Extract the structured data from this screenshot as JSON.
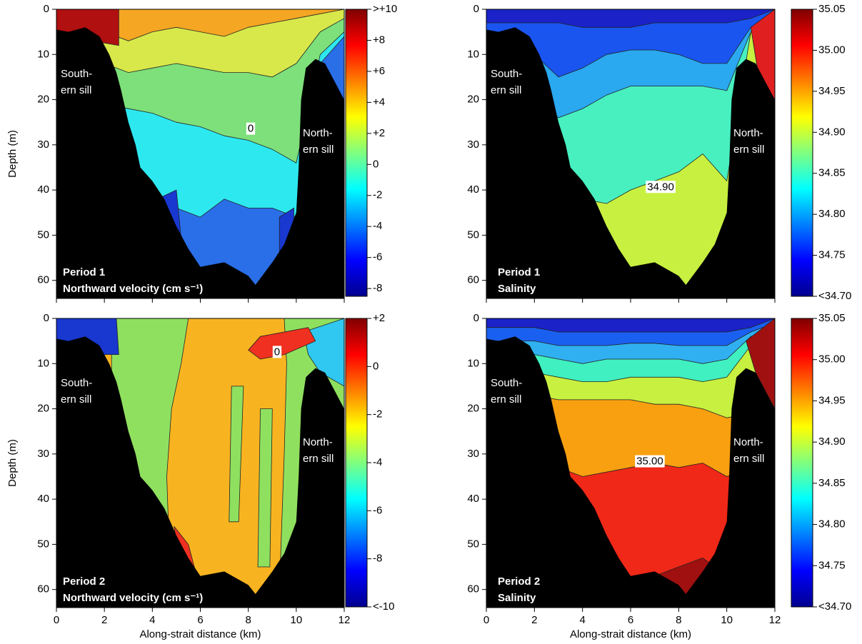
{
  "chart_data": [
    {
      "type": "contour",
      "title": "Period 1",
      "subtitle": "Northward velocity (cm s⁻¹)",
      "ylabel": "Depth (m)",
      "xlim": [
        0,
        12
      ],
      "xticks": [
        0,
        2,
        4,
        6,
        8,
        10,
        12
      ],
      "show_xtick_labels": false,
      "ylim": [
        0,
        64
      ],
      "yticks": [
        0,
        10,
        20,
        30,
        40,
        50,
        60
      ],
      "y_inverted": true,
      "annotations": [
        "South-",
        "ern sill",
        "North-",
        "ern sill"
      ],
      "colorbar": {
        "colormap": "jet",
        "lim": [
          -8.5,
          10
        ],
        "ticks": [
          {
            "value": 10,
            "label": ">+10"
          },
          {
            "value": 8,
            "label": "+8"
          },
          {
            "value": 6,
            "label": "+6"
          },
          {
            "value": 4,
            "label": "+4"
          },
          {
            "value": 2,
            "label": "+2"
          },
          0,
          -2,
          -4,
          -6,
          -8
        ]
      },
      "contour_labels": [
        0
      ]
    },
    {
      "type": "contour",
      "title": "Period 1",
      "subtitle": "Salinity",
      "xlim": [
        0,
        12
      ],
      "xticks": [
        0,
        2,
        4,
        6,
        8,
        10,
        12
      ],
      "show_xtick_labels": false,
      "ylim": [
        0,
        64
      ],
      "yticks": [
        0,
        10,
        20,
        30,
        40,
        50,
        60
      ],
      "y_inverted": true,
      "annotations": [
        "South-",
        "ern sill",
        "North-",
        "ern sill"
      ],
      "colorbar": {
        "colormap": "jet",
        "lim": [
          34.7,
          35.05
        ],
        "ticks": [
          35.05,
          {
            "value": 35,
            "label": "35.00"
          },
          34.95,
          {
            "value": 34.9,
            "label": "34.90"
          },
          34.85,
          {
            "value": 34.8,
            "label": "34.80"
          },
          34.75,
          {
            "value": 34.7,
            "label": "<34.70"
          }
        ]
      },
      "contour_labels": [
        {
          "value": 34.9,
          "label": "34.90"
        }
      ]
    },
    {
      "type": "contour",
      "title": "Period 2",
      "subtitle": "Northward velocity (cm s⁻¹)",
      "ylabel": "Depth (m)",
      "xlabel": "Along-strait distance (km)",
      "xlim": [
        0,
        12
      ],
      "xticks": [
        0,
        2,
        4,
        6,
        8,
        10,
        12
      ],
      "show_xtick_labels": true,
      "ylim": [
        0,
        64
      ],
      "yticks": [
        0,
        10,
        20,
        30,
        40,
        50,
        60
      ],
      "y_inverted": true,
      "annotations": [
        "South-",
        "ern sill",
        "North-",
        "ern sill"
      ],
      "colorbar": {
        "colormap": "jet",
        "lim": [
          -10,
          2
        ],
        "ticks": [
          {
            "value": 2,
            "label": "+2"
          },
          0,
          -2,
          -4,
          -6,
          -8,
          {
            "value": -10,
            "label": "<-10"
          }
        ]
      },
      "contour_labels": [
        0
      ]
    },
    {
      "type": "contour",
      "title": "Period 2",
      "subtitle": "Salinity",
      "xlabel": "Along-strait distance (km)",
      "xlim": [
        0,
        12
      ],
      "xticks": [
        0,
        2,
        4,
        6,
        8,
        10,
        12
      ],
      "show_xtick_labels": true,
      "ylim": [
        0,
        64
      ],
      "yticks": [
        0,
        10,
        20,
        30,
        40,
        50,
        60
      ],
      "y_inverted": true,
      "annotations": [
        "South-",
        "ern sill",
        "North-",
        "ern sill"
      ],
      "colorbar": {
        "colormap": "jet",
        "lim": [
          34.7,
          35.05
        ],
        "ticks": [
          35.05,
          {
            "value": 35,
            "label": "35.00"
          },
          34.95,
          {
            "value": 34.9,
            "label": "34.90"
          },
          34.85,
          {
            "value": 34.8,
            "label": "34.80"
          },
          34.75,
          {
            "value": 34.7,
            "label": "<34.70"
          }
        ]
      },
      "contour_labels": [
        {
          "value": 35,
          "label": "35.00"
        }
      ]
    }
  ]
}
